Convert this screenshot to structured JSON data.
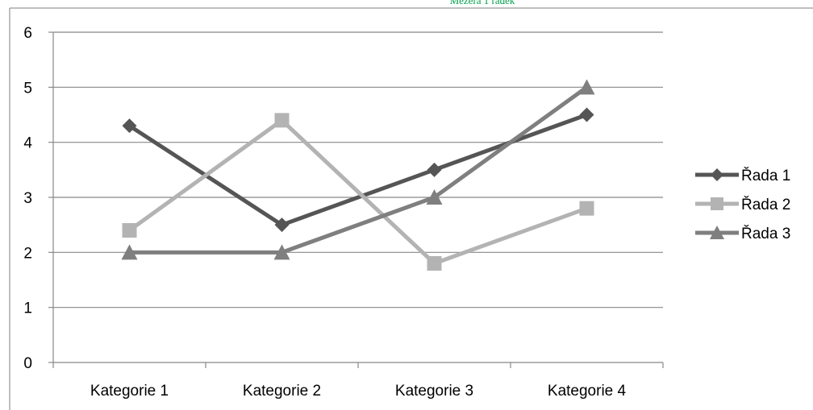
{
  "header_note": {
    "text": "Mezera 1 řádek",
    "color": "#00a04a"
  },
  "colors": {
    "gridline": "#888888",
    "axis": "#888888",
    "frame": "#7f7f7f",
    "series": [
      "#555555",
      "#b3b3b3",
      "#7f7f7f"
    ]
  },
  "chart_data": {
    "type": "line",
    "title": "",
    "xlabel": "",
    "ylabel": "",
    "categories": [
      "Kategorie 1",
      "Kategorie 2",
      "Kategorie 3",
      "Kategorie 4"
    ],
    "ylim": [
      0,
      6
    ],
    "yticks": [
      "0",
      "1",
      "2",
      "3",
      "4",
      "5",
      "6"
    ],
    "grid": true,
    "legend_position": "right",
    "series": [
      {
        "name": "Řada 1",
        "marker": "diamond",
        "values": [
          4.3,
          2.5,
          3.5,
          4.5
        ]
      },
      {
        "name": "Řada 2",
        "marker": "square",
        "values": [
          2.4,
          4.4,
          1.8,
          2.8
        ]
      },
      {
        "name": "Řada 3",
        "marker": "triangle",
        "values": [
          2,
          2,
          3,
          5
        ]
      }
    ]
  }
}
